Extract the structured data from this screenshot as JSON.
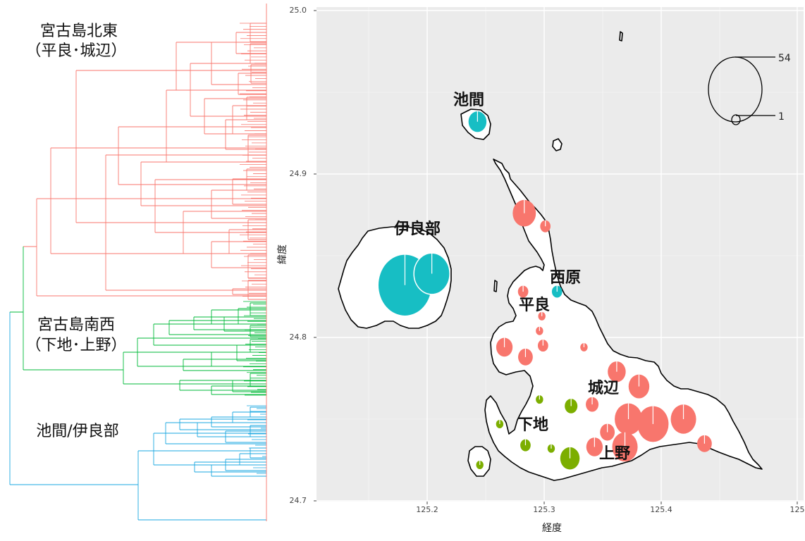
{
  "dendrogram": {
    "cluster_labels": [
      {
        "line1": "宮古島北東",
        "line2": "（平良･城辺）",
        "color": "#F8766D"
      },
      {
        "line1": "宮古島南西",
        "line2": "（下地･上野）",
        "color": "#00BA38"
      },
      {
        "line1": "池間/伊良部",
        "line2": "",
        "color": "#1AA7E0"
      }
    ]
  },
  "map": {
    "xlabel": "経度",
    "ylabel": "緯度",
    "x_ticks": [
      "125.2",
      "125.3",
      "125.4",
      "125"
    ],
    "y_ticks": [
      "24.7",
      "24.8",
      "24.9",
      "25.0"
    ],
    "background": "#EBEBEB",
    "colors": {
      "red": "#F8766D",
      "green": "#7CAE00",
      "teal": "#17BEC4"
    }
  },
  "place_labels": [
    "池間",
    "伊良部",
    "西原",
    "平良",
    "城辺",
    "下地",
    "上野"
  ],
  "size_legend": {
    "max_label": "54",
    "min_label": "1"
  },
  "chart_data": {
    "type": "scatter",
    "title": "",
    "xlabel": "経度",
    "ylabel": "緯度",
    "xlim": [
      125.11,
      125.5
    ],
    "ylim": [
      24.695,
      25.0
    ],
    "size_legend": [
      54,
      1
    ],
    "series": [
      {
        "name": "",
        "color": "#F8766D",
        "points": [
          {
            "x": 125.283,
            "y": 24.876,
            "n": 10
          },
          {
            "x": 125.301,
            "y": 24.868,
            "n": 2
          },
          {
            "x": 125.282,
            "y": 24.828,
            "n": 2
          },
          {
            "x": 125.298,
            "y": 24.813,
            "n": 1
          },
          {
            "x": 125.296,
            "y": 24.804,
            "n": 1
          },
          {
            "x": 125.299,
            "y": 24.795,
            "n": 2
          },
          {
            "x": 125.266,
            "y": 24.794,
            "n": 5
          },
          {
            "x": 125.284,
            "y": 24.788,
            "n": 4
          },
          {
            "x": 125.334,
            "y": 24.794,
            "n": 1
          },
          {
            "x": 125.381,
            "y": 24.77,
            "n": 8
          },
          {
            "x": 125.362,
            "y": 24.779,
            "n": 6
          },
          {
            "x": 125.341,
            "y": 24.759,
            "n": 3
          },
          {
            "x": 125.372,
            "y": 24.75,
            "n": 14
          },
          {
            "x": 125.393,
            "y": 24.747,
            "n": 18
          },
          {
            "x": 125.419,
            "y": 24.75,
            "n": 12
          },
          {
            "x": 125.354,
            "y": 24.742,
            "n": 4
          },
          {
            "x": 125.369,
            "y": 24.733,
            "n": 12
          },
          {
            "x": 125.343,
            "y": 24.733,
            "n": 5
          },
          {
            "x": 125.437,
            "y": 24.735,
            "n": 4
          }
        ]
      },
      {
        "name": "",
        "color": "#7CAE00",
        "points": [
          {
            "x": 125.296,
            "y": 24.762,
            "n": 1
          },
          {
            "x": 125.323,
            "y": 24.758,
            "n": 3
          },
          {
            "x": 125.262,
            "y": 24.747,
            "n": 1
          },
          {
            "x": 125.284,
            "y": 24.734,
            "n": 2
          },
          {
            "x": 125.306,
            "y": 24.732,
            "n": 1
          },
          {
            "x": 125.322,
            "y": 24.726,
            "n": 7
          },
          {
            "x": 125.245,
            "y": 24.722,
            "n": 1
          }
        ]
      },
      {
        "name": "",
        "color": "#17BEC4",
        "points": [
          {
            "x": 125.243,
            "y": 24.932,
            "n": 6
          },
          {
            "x": 125.181,
            "y": 24.832,
            "n": 54
          },
          {
            "x": 125.204,
            "y": 24.839,
            "n": 24
          },
          {
            "x": 125.311,
            "y": 24.828,
            "n": 2
          }
        ]
      }
    ]
  }
}
